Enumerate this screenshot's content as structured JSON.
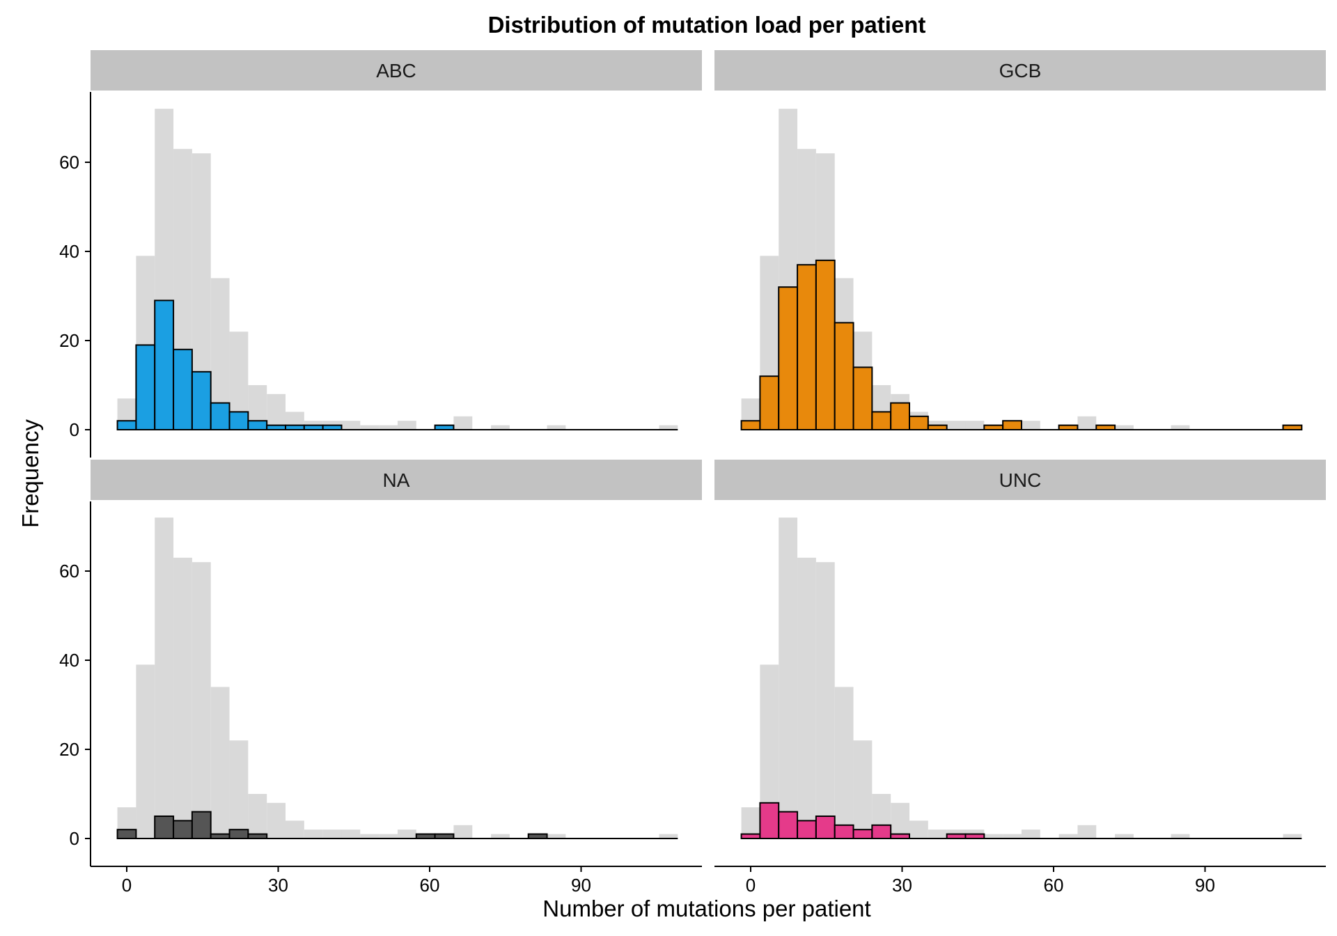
{
  "chart_data": {
    "type": "bar",
    "title": "Distribution of mutation load per patient",
    "xlabel": "Number of mutations per patient",
    "ylabel": "Frequency",
    "x_ticks": [
      0,
      30,
      60,
      90
    ],
    "y_ticks": [
      0,
      20,
      40,
      60
    ],
    "xlim": [
      -7.5,
      115
    ],
    "ylim": [
      -3,
      75
    ],
    "bin_width": 3.7,
    "bin_centers": [
      0,
      3.7,
      7.4,
      11.1,
      14.8,
      18.5,
      22.2,
      25.9,
      29.6,
      33.3,
      37.0,
      40.7,
      44.4,
      48.1,
      51.8,
      55.5,
      59.2,
      62.9,
      66.6,
      70.3,
      74.0,
      77.7,
      81.4,
      85.1,
      88.8,
      92.5,
      96.2,
      99.9,
      103.6,
      107.3
    ],
    "background": {
      "name": "",
      "color": "#d9d9d9",
      "values": [
        7,
        39,
        72,
        63,
        62,
        34,
        22,
        10,
        8,
        4,
        2,
        2,
        2,
        1,
        1,
        2,
        0,
        1,
        3,
        0,
        1,
        0,
        0,
        1,
        0,
        0,
        0,
        0,
        0,
        1
      ]
    },
    "panels": [
      {
        "label": "ABC",
        "color": "#1b9fe2",
        "values": [
          2,
          19,
          29,
          18,
          13,
          6,
          4,
          2,
          1,
          1,
          1,
          1,
          0,
          0,
          0,
          0,
          0,
          1,
          0,
          0,
          0,
          0,
          0,
          0,
          0,
          0,
          0,
          0,
          0,
          0
        ]
      },
      {
        "label": "GCB",
        "color": "#e8890c",
        "values": [
          2,
          12,
          32,
          37,
          38,
          24,
          14,
          4,
          6,
          3,
          1,
          0,
          0,
          1,
          2,
          0,
          0,
          1,
          0,
          1,
          0,
          0,
          0,
          0,
          0,
          0,
          0,
          0,
          0,
          1
        ]
      },
      {
        "label": "NA",
        "color": "#555555",
        "values": [
          2,
          0,
          5,
          4,
          6,
          1,
          2,
          1,
          0,
          0,
          0,
          0,
          0,
          0,
          0,
          0,
          1,
          1,
          0,
          0,
          0,
          0,
          1,
          0,
          0,
          0,
          0,
          0,
          0,
          0
        ]
      },
      {
        "label": "UNC",
        "color": "#e53a8a",
        "values": [
          1,
          8,
          6,
          4,
          5,
          3,
          2,
          3,
          1,
          0,
          0,
          1,
          1,
          0,
          0,
          0,
          0,
          0,
          0,
          0,
          0,
          0,
          0,
          0,
          0,
          0,
          0,
          0,
          0,
          0
        ]
      }
    ],
    "grid": false,
    "legend": "none"
  }
}
